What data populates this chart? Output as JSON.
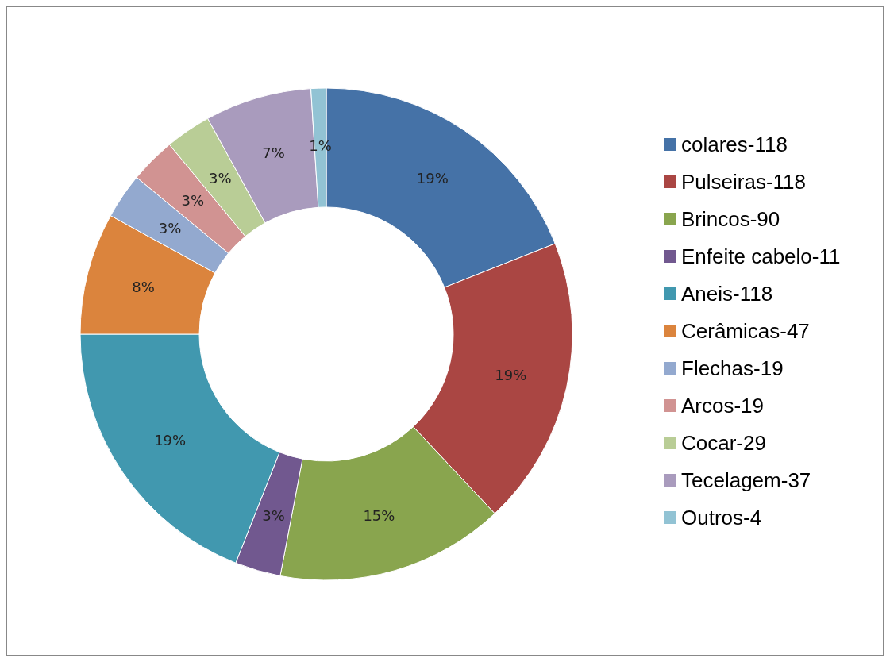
{
  "chart_data": {
    "type": "donut",
    "categories": [
      "colares-118",
      "Pulseiras-118",
      "Brincos-90",
      "Enfeite cabelo-11",
      "Aneis-118",
      "Cerâmicas-47",
      "Flechas-19",
      "Arcos-19",
      "Cocar-29",
      "Tecelagem-37",
      "Outros-4"
    ],
    "values": [
      19,
      19,
      15,
      3,
      19,
      8,
      3,
      3,
      3,
      7,
      1
    ],
    "value_labels": [
      "19%",
      "19%",
      "15%",
      "3%",
      "19%",
      "8%",
      "3%",
      "3%",
      "3%",
      "7%",
      "1%"
    ],
    "colors": [
      "#4572a7",
      "#aa4643",
      "#89a54e",
      "#71588f",
      "#4198af",
      "#db843d",
      "#93a9cf",
      "#d19392",
      "#b9cd96",
      "#a99bbd",
      "#92c3d4"
    ],
    "legend": "right"
  }
}
